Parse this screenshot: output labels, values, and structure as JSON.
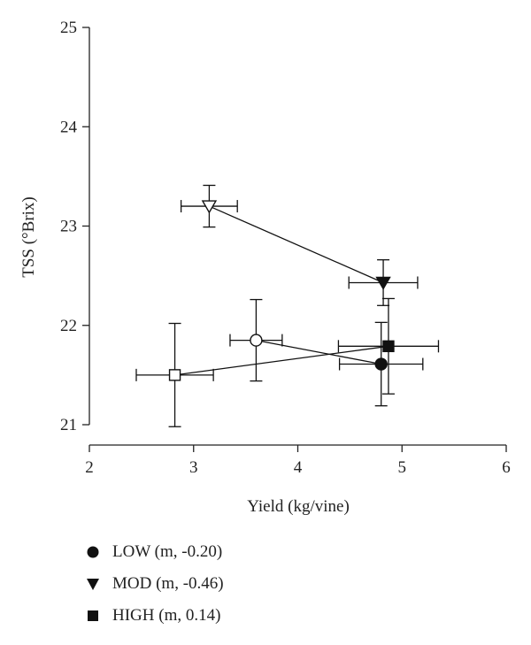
{
  "chart_data": {
    "type": "scatter",
    "xlabel": "Yield (kg/vine)",
    "ylabel": "TSS (°Brix)",
    "xlim": [
      2,
      6
    ],
    "ylim": [
      21,
      25
    ],
    "xticks": [
      2,
      3,
      4,
      5,
      6
    ],
    "yticks": [
      21,
      22,
      23,
      24,
      25
    ],
    "grid": false,
    "legend_position": "bottom-left, below plot",
    "points": [
      {
        "id": "low-open",
        "marker": "circle",
        "filled": false,
        "x": 3.6,
        "y": 21.85,
        "xerr": 0.25,
        "yerr": 0.41
      },
      {
        "id": "low-filled",
        "marker": "circle",
        "filled": true,
        "x": 4.8,
        "y": 21.61,
        "xerr": 0.4,
        "yerr": 0.42
      },
      {
        "id": "mod-open",
        "marker": "triangle",
        "filled": false,
        "x": 3.15,
        "y": 23.2,
        "xerr": 0.27,
        "yerr": 0.21
      },
      {
        "id": "mod-filled",
        "marker": "triangle",
        "filled": true,
        "x": 4.82,
        "y": 22.43,
        "xerr": 0.33,
        "yerr": 0.23
      },
      {
        "id": "high-open",
        "marker": "square",
        "filled": false,
        "x": 2.82,
        "y": 21.5,
        "xerr": 0.37,
        "yerr": 0.52
      },
      {
        "id": "high-filled",
        "marker": "square",
        "filled": true,
        "x": 4.87,
        "y": 21.79,
        "xerr": 0.48,
        "yerr": 0.48
      }
    ],
    "lines": [
      [
        "low-open",
        "low-filled"
      ],
      [
        "mod-open",
        "mod-filled"
      ],
      [
        "high-open",
        "high-filled"
      ]
    ],
    "legend": [
      {
        "marker": "circle",
        "label": "LOW (m, -0.20)"
      },
      {
        "marker": "triangle",
        "label": "MOD (m, -0.46)"
      },
      {
        "marker": "square",
        "label": "HIGH (m, 0.14)"
      }
    ]
  }
}
